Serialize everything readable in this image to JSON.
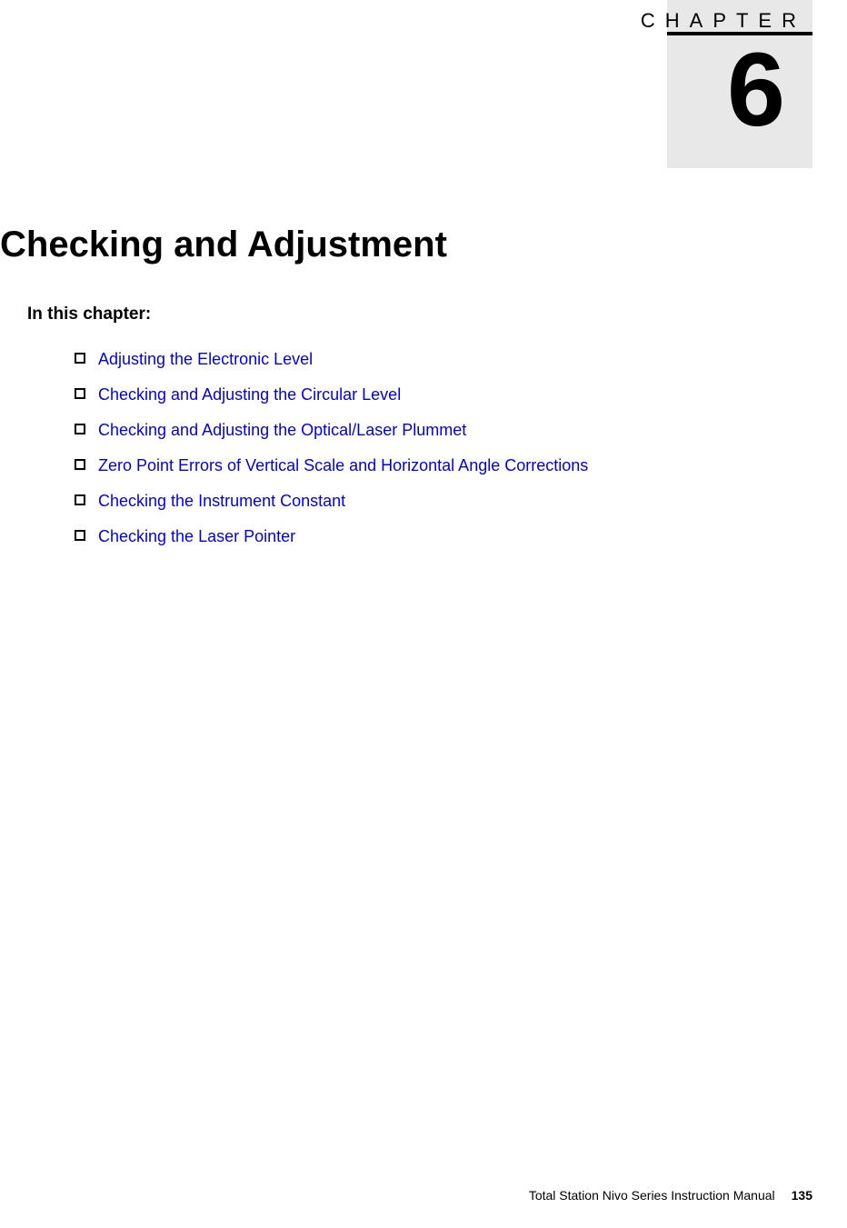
{
  "chapter": {
    "label": "CHAPTER",
    "number": "6",
    "title": "Checking and Adjustment",
    "box_bg": "#e8e8e8",
    "rule_color": "#000000",
    "label_fontsize": 22,
    "number_fontsize": 115
  },
  "section_heading": "In this chapter:",
  "toc": {
    "link_color": "#0000ee",
    "bullet_border": "#000000",
    "items": [
      {
        "label": "Adjusting the Electronic Level"
      },
      {
        "label": "Checking and Adjusting the Circular Level"
      },
      {
        "label": "Checking and Adjusting the Optical/Laser Plummet"
      },
      {
        "label": "Zero Point Errors of Vertical Scale and Horizontal Angle Corrections"
      },
      {
        "label": "Checking the Instrument Constant"
      },
      {
        "label": "Checking the Laser Pointer"
      }
    ]
  },
  "footer": {
    "document_title": "Total Station Nivo Series Instruction Manual",
    "page_number": "135"
  }
}
